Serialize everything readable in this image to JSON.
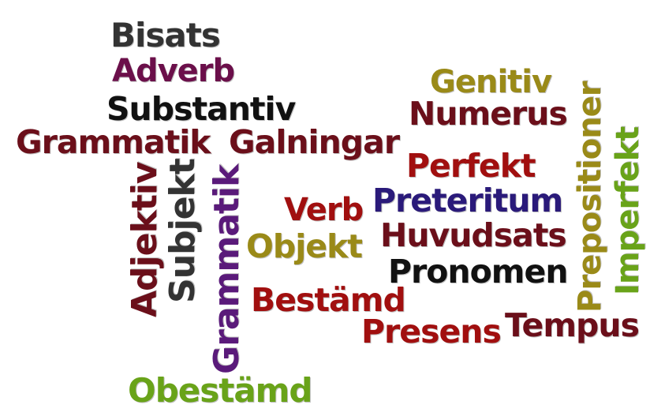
{
  "palette": {
    "dark_gray": "#333333",
    "purple": "#6b0f4a",
    "black": "#111111",
    "maroon": "#6b0f1a",
    "red": "#a10f0f",
    "navy": "#2a1a7a",
    "olive": "#9a8a18",
    "green": "#69a319",
    "violet": "#5a1a7a"
  },
  "words": {
    "w01": "Bisats",
    "w02": "Adverb",
    "w03": "Substantiv",
    "w04": "Grammatik",
    "w05": "Galningar",
    "w06": "Adjektiv",
    "w07": "Subjekt",
    "w08": "Grammatik",
    "w09": "Genitiv",
    "w10": "Numerus",
    "w11": "Perfekt",
    "w12": "Preteritum",
    "w13": "Verb",
    "w14": "Huvudsats",
    "w15": "Objekt",
    "w16": "Pronomen",
    "w17": "Bestämd",
    "w18": "Presens",
    "w19": "Tempus",
    "w20": "Obestämd",
    "w21": "Prepositioner",
    "w22": "Imperfekt"
  }
}
